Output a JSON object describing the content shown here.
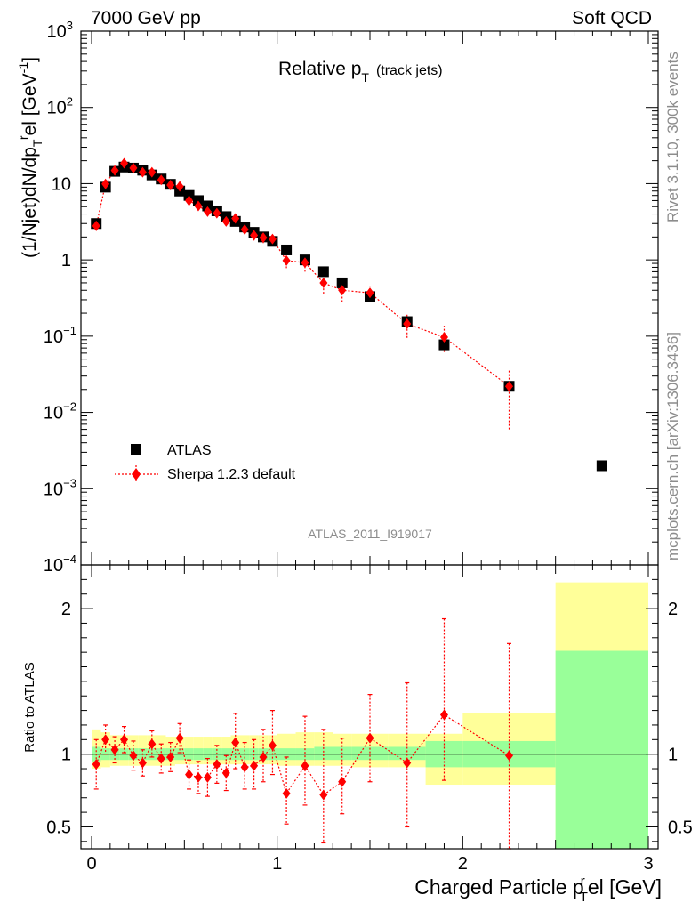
{
  "header": {
    "left": "7000 GeV pp",
    "right": "Soft QCD"
  },
  "side_text": {
    "version": "Rivet 3.1.10,  300k events",
    "source": "mcplots.cern.ch [arXiv:1306.3436]"
  },
  "chart_data": [
    {
      "type": "scatter",
      "title": "Relative p",
      "title_sub": "T",
      "title_note": "(track jets)",
      "ylabel_parts": {
        "main": "(1/Njet)dN/dp",
        "sub": "T",
        "sup": "r",
        "tail": "el [GeV",
        "unit_sup": "-1",
        "close": "]"
      },
      "analysis_label": "ATLAS_2011_I919017",
      "yscale": "log",
      "ylim": [
        0.0001,
        1000
      ],
      "xlim": [
        -0.07,
        3.07
      ],
      "yticks": [
        {
          "base": "10",
          "exp": "3",
          "value": 1000
        },
        {
          "base": "10",
          "exp": "2",
          "value": 100
        },
        {
          "base": "10",
          "exp": "",
          "value": 10
        },
        {
          "base": "1",
          "exp": "",
          "value": 1
        },
        {
          "base": "10",
          "exp": "−1",
          "value": 0.1
        },
        {
          "base": "10",
          "exp": "−2",
          "value": 0.01
        },
        {
          "base": "10",
          "exp": "−3",
          "value": 0.001
        },
        {
          "base": "10",
          "exp": "−4",
          "value": 0.0001
        }
      ],
      "legend": {
        "position": "bottom-left",
        "entries": [
          "ATLAS",
          "Sherpa 1.2.3 default"
        ]
      },
      "series": [
        {
          "name": "ATLAS",
          "color": "#000000",
          "marker": "square",
          "x": [
            0.025,
            0.075,
            0.125,
            0.175,
            0.225,
            0.275,
            0.325,
            0.375,
            0.425,
            0.475,
            0.525,
            0.575,
            0.625,
            0.675,
            0.725,
            0.775,
            0.825,
            0.875,
            0.925,
            0.975,
            1.05,
            1.15,
            1.25,
            1.35,
            1.5,
            1.7,
            1.9,
            2.25,
            2.75
          ],
          "y": [
            3.0,
            9.0,
            14.5,
            16.5,
            16.0,
            15.0,
            13.0,
            11.5,
            9.8,
            8.0,
            7.0,
            6.0,
            5.1,
            4.4,
            3.7,
            3.2,
            2.7,
            2.3,
            2.0,
            1.75,
            1.35,
            1.0,
            0.7,
            0.5,
            0.33,
            0.155,
            0.077,
            0.022,
            0.002
          ]
        },
        {
          "name": "Sherpa 1.2.3 default",
          "color": "#ff0000",
          "marker": "diamond",
          "x": [
            0.025,
            0.075,
            0.125,
            0.175,
            0.225,
            0.275,
            0.325,
            0.375,
            0.425,
            0.475,
            0.525,
            0.575,
            0.625,
            0.675,
            0.725,
            0.775,
            0.825,
            0.875,
            0.925,
            0.975,
            1.05,
            1.15,
            1.25,
            1.35,
            1.5,
            1.7,
            1.9,
            2.25
          ],
          "y": [
            2.8,
            9.9,
            14.9,
            18.5,
            16.0,
            14.1,
            14.1,
            11.2,
            9.6,
            9.2,
            6.0,
            5.1,
            4.3,
            4.1,
            3.2,
            3.5,
            2.5,
            2.1,
            1.96,
            1.88,
            0.98,
            0.92,
            0.5,
            0.4,
            0.37,
            0.145,
            0.097,
            0.022
          ],
          "err_lo": [
            0.2,
            0.5,
            0.7,
            0.9,
            0.8,
            0.7,
            0.7,
            0.6,
            0.5,
            0.5,
            0.4,
            0.4,
            0.4,
            0.4,
            0.3,
            0.4,
            0.3,
            0.3,
            0.3,
            0.3,
            0.2,
            0.22,
            0.14,
            0.12,
            0.08,
            0.05,
            0.035,
            0.016
          ],
          "err_hi": [
            0.2,
            0.5,
            0.7,
            0.9,
            0.8,
            0.7,
            0.7,
            0.6,
            0.5,
            0.5,
            0.4,
            0.4,
            0.4,
            0.4,
            0.3,
            0.4,
            0.3,
            0.3,
            0.3,
            0.3,
            0.2,
            0.22,
            0.14,
            0.12,
            0.08,
            0.05,
            0.04,
            0.015
          ]
        }
      ]
    },
    {
      "type": "scatter",
      "ylabel": "Ratio to ATLAS",
      "xlabel_parts": {
        "main": "Charged Particle p",
        "sup": "r",
        "sub": "T",
        "tail": "el [GeV]"
      },
      "ylim": [
        0.35,
        2.3
      ],
      "yticks": [
        {
          "label": "0.5",
          "value": 0.5
        },
        {
          "label": "1",
          "value": 1
        },
        {
          "label": "2",
          "value": 2
        }
      ],
      "xticks": [
        {
          "label": "0",
          "value": 0
        },
        {
          "label": "1",
          "value": 1
        },
        {
          "label": "2",
          "value": 2
        },
        {
          "label": "3",
          "value": 3
        }
      ],
      "reference_line": 1,
      "uncertainty_bands": {
        "colors": {
          "outer": "#ffff99",
          "inner": "#99ff99"
        },
        "edges": [
          0.0,
          0.05,
          0.1,
          0.15,
          0.2,
          0.25,
          0.3,
          0.35,
          0.4,
          0.45,
          0.5,
          0.55,
          0.6,
          0.65,
          0.7,
          0.75,
          0.8,
          0.85,
          0.9,
          0.95,
          1.0,
          1.1,
          1.2,
          1.3,
          1.4,
          1.6,
          1.8,
          2.0,
          2.5,
          3.0
        ],
        "outer_lo": [
          0.9,
          0.91,
          0.92,
          0.92,
          0.92,
          0.92,
          0.92,
          0.92,
          0.92,
          0.93,
          0.93,
          0.93,
          0.93,
          0.93,
          0.93,
          0.93,
          0.93,
          0.93,
          0.93,
          0.93,
          0.92,
          0.92,
          0.92,
          0.92,
          0.91,
          0.91,
          0.79,
          0.79,
          0.29,
          0.29
        ],
        "outer_hi": [
          1.17,
          1.15,
          1.13,
          1.13,
          1.13,
          1.13,
          1.13,
          1.13,
          1.12,
          1.12,
          1.12,
          1.12,
          1.12,
          1.12,
          1.12,
          1.13,
          1.13,
          1.13,
          1.13,
          1.13,
          1.14,
          1.15,
          1.15,
          1.14,
          1.14,
          1.14,
          1.14,
          1.28,
          2.18,
          2.18
        ],
        "inner_lo": [
          0.95,
          0.96,
          0.96,
          0.96,
          0.96,
          0.96,
          0.96,
          0.96,
          0.96,
          0.96,
          0.96,
          0.96,
          0.96,
          0.96,
          0.96,
          0.96,
          0.96,
          0.96,
          0.96,
          0.96,
          0.96,
          0.96,
          0.96,
          0.96,
          0.96,
          0.96,
          0.91,
          0.91,
          0.29,
          0.29
        ],
        "inner_hi": [
          1.05,
          1.04,
          1.04,
          1.04,
          1.04,
          1.04,
          1.04,
          1.04,
          1.04,
          1.04,
          1.04,
          1.04,
          1.04,
          1.04,
          1.04,
          1.04,
          1.04,
          1.04,
          1.04,
          1.04,
          1.04,
          1.04,
          1.05,
          1.05,
          1.05,
          1.05,
          1.09,
          1.09,
          1.71,
          1.71
        ]
      },
      "series": [
        {
          "name": "Sherpa 1.2.3 default",
          "color": "#ff0000",
          "marker": "diamond",
          "x": [
            0.025,
            0.075,
            0.125,
            0.175,
            0.225,
            0.275,
            0.325,
            0.375,
            0.425,
            0.475,
            0.525,
            0.575,
            0.625,
            0.675,
            0.725,
            0.775,
            0.825,
            0.875,
            0.925,
            0.975,
            1.05,
            1.15,
            1.25,
            1.35,
            1.5,
            1.7,
            1.9,
            2.25
          ],
          "y": [
            0.93,
            1.1,
            1.03,
            1.1,
            0.99,
            0.94,
            1.07,
            0.97,
            0.98,
            1.11,
            0.86,
            0.84,
            0.84,
            0.93,
            0.87,
            1.08,
            0.91,
            0.92,
            0.98,
            1.06,
            0.73,
            0.92,
            0.72,
            0.81,
            1.11,
            0.94,
            1.27,
            0.99
          ],
          "err_lo": [
            0.17,
            0.1,
            0.09,
            0.09,
            0.1,
            0.09,
            0.09,
            0.1,
            0.1,
            0.1,
            0.1,
            0.11,
            0.13,
            0.13,
            0.12,
            0.18,
            0.15,
            0.16,
            0.17,
            0.2,
            0.21,
            0.27,
            0.33,
            0.22,
            0.3,
            0.44,
            0.45,
            0.74
          ],
          "err_hi": [
            0.17,
            0.1,
            0.09,
            0.09,
            0.1,
            0.09,
            0.09,
            0.1,
            0.1,
            0.1,
            0.1,
            0.11,
            0.13,
            0.13,
            0.12,
            0.2,
            0.17,
            0.18,
            0.19,
            0.24,
            0.25,
            0.34,
            0.45,
            0.3,
            0.3,
            0.55,
            0.66,
            0.77
          ]
        }
      ]
    }
  ]
}
